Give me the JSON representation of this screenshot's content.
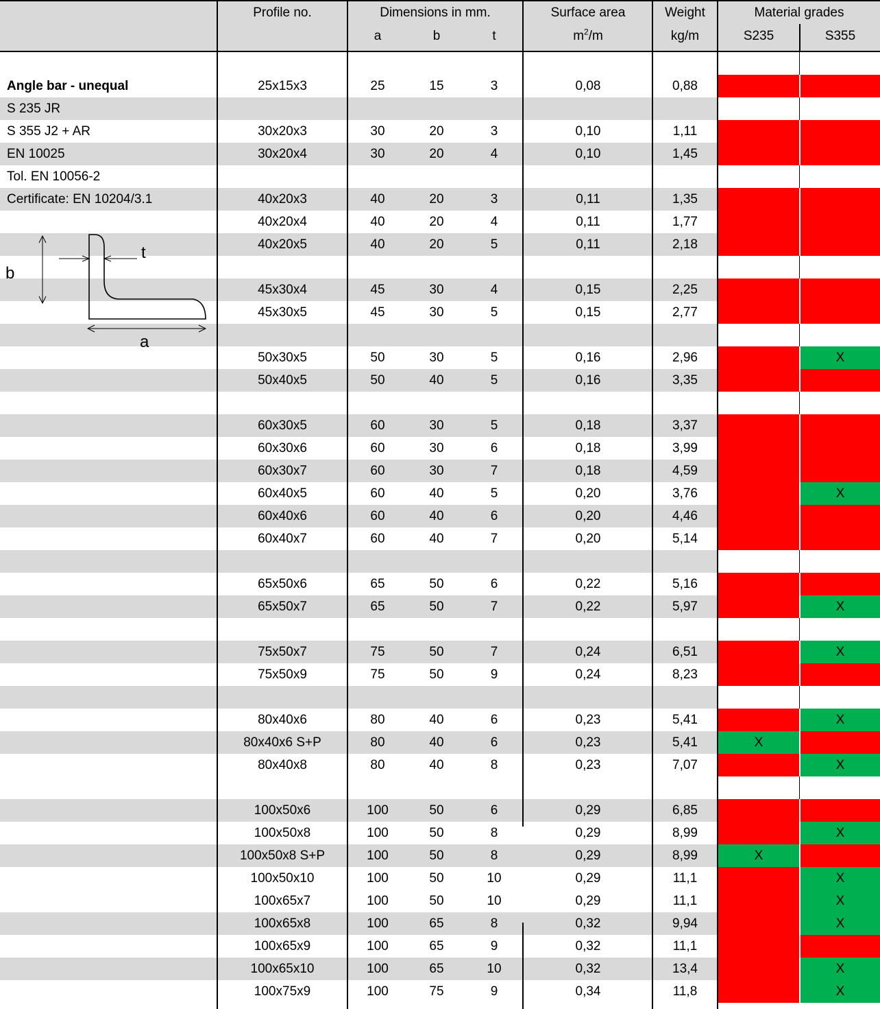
{
  "header": {
    "profile_no": "Profile no.",
    "dimensions": "Dimensions in mm.",
    "surface_area": "Surface area",
    "weight": "Weight",
    "material_grades": "Material grades",
    "dim_a": "a",
    "dim_b": "b",
    "dim_t": "t",
    "surface_unit_base": "m",
    "surface_unit_sup": "2",
    "surface_unit_tail": "/m",
    "weight_unit": "kg/m",
    "grade_1": "S235",
    "grade_2": "S355"
  },
  "product": {
    "title": "Angle bar - unequal",
    "lines": [
      "S 235 JR",
      "S 355 J2 + AR",
      "EN 10025",
      "Tol. EN 10056-2",
      "Certificate: EN 10204/3.1"
    ],
    "diagram_labels": {
      "t": "t",
      "b": "b",
      "a": "a"
    }
  },
  "colors": {
    "no_stock": "#ff0000",
    "in_stock": "#00b050",
    "shade": "#d9d9d9"
  },
  "rows": [
    {
      "type": "blank",
      "shade": false
    },
    {
      "type": "data",
      "shade": false,
      "profile": "25x15x3",
      "a": "25",
      "b": "15",
      "t": "3",
      "surface": "0,08",
      "weight": "0,88",
      "s235": "",
      "s355": ""
    },
    {
      "type": "blank",
      "shade": true
    },
    {
      "type": "data",
      "shade": false,
      "profile": "30x20x3",
      "a": "30",
      "b": "20",
      "t": "3",
      "surface": "0,10",
      "weight": "1,11",
      "s235": "",
      "s355": ""
    },
    {
      "type": "data",
      "shade": true,
      "profile": "30x20x4",
      "a": "30",
      "b": "20",
      "t": "4",
      "surface": "0,10",
      "weight": "1,45",
      "s235": "",
      "s355": ""
    },
    {
      "type": "blank",
      "shade": false
    },
    {
      "type": "data",
      "shade": true,
      "profile": "40x20x3",
      "a": "40",
      "b": "20",
      "t": "3",
      "surface": "0,11",
      "weight": "1,35",
      "s235": "",
      "s355": ""
    },
    {
      "type": "data",
      "shade": false,
      "profile": "40x20x4",
      "a": "40",
      "b": "20",
      "t": "4",
      "surface": "0,11",
      "weight": "1,77",
      "s235": "",
      "s355": ""
    },
    {
      "type": "data",
      "shade": true,
      "profile": "40x20x5",
      "a": "40",
      "b": "20",
      "t": "5",
      "surface": "0,11",
      "weight": "2,18",
      "s235": "",
      "s355": ""
    },
    {
      "type": "blank",
      "shade": false
    },
    {
      "type": "data",
      "shade": true,
      "profile": "45x30x4",
      "a": "45",
      "b": "30",
      "t": "4",
      "surface": "0,15",
      "weight": "2,25",
      "s235": "",
      "s355": ""
    },
    {
      "type": "data",
      "shade": false,
      "profile": "45x30x5",
      "a": "45",
      "b": "30",
      "t": "5",
      "surface": "0,15",
      "weight": "2,77",
      "s235": "",
      "s355": ""
    },
    {
      "type": "blank",
      "shade": true
    },
    {
      "type": "data",
      "shade": false,
      "profile": "50x30x5",
      "a": "50",
      "b": "30",
      "t": "5",
      "surface": "0,16",
      "weight": "2,96",
      "s235": "",
      "s355": "X"
    },
    {
      "type": "data",
      "shade": true,
      "profile": "50x40x5",
      "a": "50",
      "b": "40",
      "t": "5",
      "surface": "0,16",
      "weight": "3,35",
      "s235": "",
      "s355": ""
    },
    {
      "type": "blank",
      "shade": false
    },
    {
      "type": "data",
      "shade": true,
      "profile": "60x30x5",
      "a": "60",
      "b": "30",
      "t": "5",
      "surface": "0,18",
      "weight": "3,37",
      "s235": "",
      "s355": ""
    },
    {
      "type": "data",
      "shade": false,
      "profile": "60x30x6",
      "a": "60",
      "b": "30",
      "t": "6",
      "surface": "0,18",
      "weight": "3,99",
      "s235": "",
      "s355": ""
    },
    {
      "type": "data",
      "shade": true,
      "profile": "60x30x7",
      "a": "60",
      "b": "30",
      "t": "7",
      "surface": "0,18",
      "weight": "4,59",
      "s235": "",
      "s355": ""
    },
    {
      "type": "data",
      "shade": false,
      "profile": "60x40x5",
      "a": "60",
      "b": "40",
      "t": "5",
      "surface": "0,20",
      "weight": "3,76",
      "s235": "",
      "s355": "X"
    },
    {
      "type": "data",
      "shade": true,
      "profile": "60x40x6",
      "a": "60",
      "b": "40",
      "t": "6",
      "surface": "0,20",
      "weight": "4,46",
      "s235": "",
      "s355": ""
    },
    {
      "type": "data",
      "shade": false,
      "profile": "60x40x7",
      "a": "60",
      "b": "40",
      "t": "7",
      "surface": "0,20",
      "weight": "5,14",
      "s235": "",
      "s355": ""
    },
    {
      "type": "blank",
      "shade": true
    },
    {
      "type": "data",
      "shade": false,
      "profile": "65x50x6",
      "a": "65",
      "b": "50",
      "t": "6",
      "surface": "0,22",
      "weight": "5,16",
      "s235": "",
      "s355": ""
    },
    {
      "type": "data",
      "shade": true,
      "profile": "65x50x7",
      "a": "65",
      "b": "50",
      "t": "7",
      "surface": "0,22",
      "weight": "5,97",
      "s235": "",
      "s355": "X"
    },
    {
      "type": "blank",
      "shade": false
    },
    {
      "type": "data",
      "shade": true,
      "profile": "75x50x7",
      "a": "75",
      "b": "50",
      "t": "7",
      "surface": "0,24",
      "weight": "6,51",
      "s235": "",
      "s355": "X"
    },
    {
      "type": "data",
      "shade": false,
      "profile": "75x50x9",
      "a": "75",
      "b": "50",
      "t": "9",
      "surface": "0,24",
      "weight": "8,23",
      "s235": "",
      "s355": ""
    },
    {
      "type": "blank",
      "shade": true
    },
    {
      "type": "data",
      "shade": false,
      "profile": "80x40x6",
      "a": "80",
      "b": "40",
      "t": "6",
      "surface": "0,23",
      "weight": "5,41",
      "s235": "",
      "s355": "X"
    },
    {
      "type": "data",
      "shade": true,
      "profile": "80x40x6 S+P",
      "a": "80",
      "b": "40",
      "t": "6",
      "surface": "0,23",
      "weight": "5,41",
      "s235": "X",
      "s355": ""
    },
    {
      "type": "data",
      "shade": false,
      "profile": "80x40x8",
      "a": "80",
      "b": "40",
      "t": "8",
      "surface": "0,23",
      "weight": "7,07",
      "s235": "",
      "s355": "X"
    },
    {
      "type": "blank",
      "shade": false
    },
    {
      "type": "data",
      "shade": true,
      "profile": "100x50x6",
      "a": "100",
      "b": "50",
      "t": "6",
      "surface": "0,29",
      "weight": "6,85",
      "s235": "",
      "s355": ""
    },
    {
      "type": "data",
      "shade": false,
      "profile": "100x50x8",
      "a": "100",
      "b": "50",
      "t": "8",
      "surface": "0,29",
      "weight": "8,99",
      "s235": "",
      "s355": "X"
    },
    {
      "type": "data",
      "shade": true,
      "profile": "100x50x8 S+P",
      "a": "100",
      "b": "50",
      "t": "8",
      "surface": "0,29",
      "weight": "8,99",
      "s235": "X",
      "s355": ""
    },
    {
      "type": "data",
      "shade": false,
      "profile": "100x50x10",
      "a": "100",
      "b": "50",
      "t": "10",
      "surface": "0,29",
      "weight": "11,1",
      "s235": "",
      "s355": "X"
    },
    {
      "type": "data",
      "shade": false,
      "profile": "100x65x7",
      "a": "100",
      "b": "50",
      "t": "10",
      "surface": "0,29",
      "weight": "11,1",
      "s235": "",
      "s355": "X"
    },
    {
      "type": "data",
      "shade": true,
      "profile": "100x65x8",
      "a": "100",
      "b": "65",
      "t": "8",
      "surface": "0,32",
      "weight": "9,94",
      "s235": "",
      "s355": "X"
    },
    {
      "type": "data",
      "shade": false,
      "profile": "100x65x9",
      "a": "100",
      "b": "65",
      "t": "9",
      "surface": "0,32",
      "weight": "11,1",
      "s235": "",
      "s355": ""
    },
    {
      "type": "data",
      "shade": true,
      "profile": "100x65x10",
      "a": "100",
      "b": "65",
      "t": "10",
      "surface": "0,32",
      "weight": "13,4",
      "s235": "",
      "s355": "X"
    },
    {
      "type": "data",
      "shade": false,
      "profile": "100x75x9",
      "a": "100",
      "b": "75",
      "t": "9",
      "surface": "0,34",
      "weight": "11,8",
      "s235": "",
      "s355": "X"
    }
  ]
}
